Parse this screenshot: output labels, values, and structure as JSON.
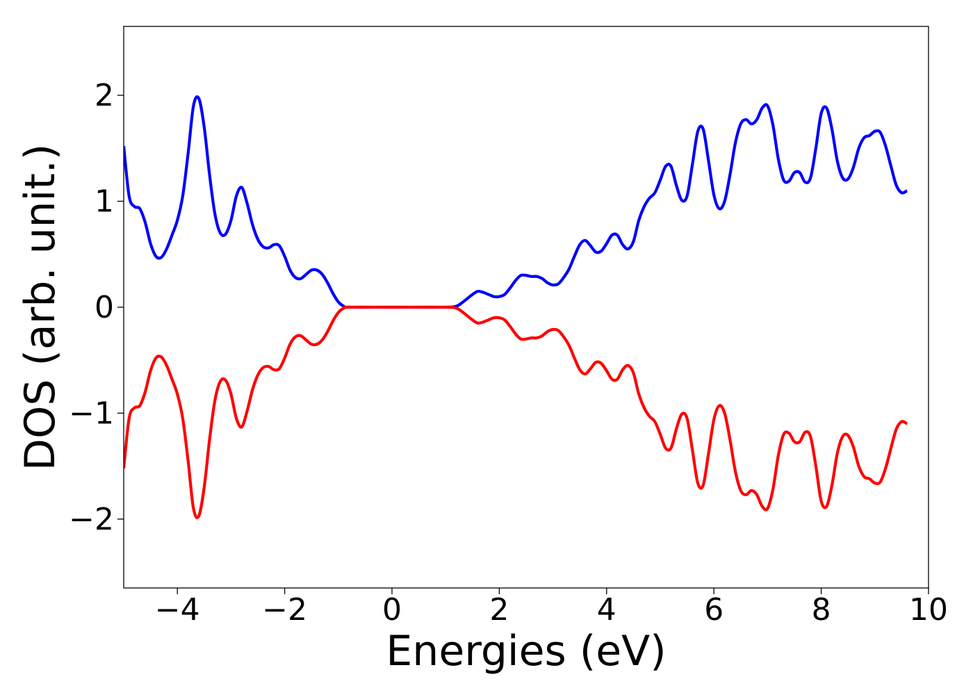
{
  "chart_data": {
    "type": "line",
    "title": "",
    "xlabel": "Energies (eV)",
    "ylabel": "DOS (arb. unit.)",
    "xlim": [
      -5,
      10
    ],
    "ylim": [
      -2.65,
      2.65
    ],
    "grid": false,
    "legend": "none",
    "x_ticks": [
      -4,
      -2,
      0,
      2,
      4,
      6,
      8,
      10
    ],
    "x_tick_labels": [
      "−4",
      "−2",
      "0",
      "2",
      "4",
      "6",
      "8",
      "10"
    ],
    "y_ticks": [
      -2,
      -1,
      0,
      1,
      2
    ],
    "y_tick_labels": [
      "−2",
      "−1",
      "0",
      "1",
      "2"
    ],
    "series": [
      {
        "color": "#0000ff",
        "points": [
          [
            -5.0,
            1.52
          ],
          [
            -4.9,
            1.05
          ],
          [
            -4.8,
            0.95
          ],
          [
            -4.7,
            0.93
          ],
          [
            -4.6,
            0.8
          ],
          [
            -4.5,
            0.6
          ],
          [
            -4.4,
            0.48
          ],
          [
            -4.3,
            0.47
          ],
          [
            -4.2,
            0.55
          ],
          [
            -4.1,
            0.68
          ],
          [
            -4.0,
            0.82
          ],
          [
            -3.9,
            1.05
          ],
          [
            -3.8,
            1.45
          ],
          [
            -3.7,
            1.9
          ],
          [
            -3.6,
            1.97
          ],
          [
            -3.5,
            1.7
          ],
          [
            -3.4,
            1.25
          ],
          [
            -3.3,
            0.88
          ],
          [
            -3.2,
            0.7
          ],
          [
            -3.1,
            0.69
          ],
          [
            -3.0,
            0.82
          ],
          [
            -2.9,
            1.05
          ],
          [
            -2.8,
            1.13
          ],
          [
            -2.7,
            0.98
          ],
          [
            -2.6,
            0.78
          ],
          [
            -2.5,
            0.64
          ],
          [
            -2.4,
            0.57
          ],
          [
            -2.3,
            0.56
          ],
          [
            -2.2,
            0.59
          ],
          [
            -2.1,
            0.58
          ],
          [
            -2.0,
            0.48
          ],
          [
            -1.9,
            0.35
          ],
          [
            -1.8,
            0.28
          ],
          [
            -1.7,
            0.27
          ],
          [
            -1.6,
            0.31
          ],
          [
            -1.5,
            0.35
          ],
          [
            -1.4,
            0.35
          ],
          [
            -1.3,
            0.31
          ],
          [
            -1.2,
            0.23
          ],
          [
            -1.1,
            0.13
          ],
          [
            -1.0,
            0.05
          ],
          [
            -0.9,
            0.01
          ],
          [
            -0.8,
            0.0
          ],
          [
            0.0,
            0.0
          ],
          [
            1.0,
            0.0
          ],
          [
            1.2,
            0.01
          ],
          [
            1.3,
            0.04
          ],
          [
            1.4,
            0.08
          ],
          [
            1.5,
            0.12
          ],
          [
            1.6,
            0.15
          ],
          [
            1.7,
            0.14
          ],
          [
            1.8,
            0.12
          ],
          [
            1.9,
            0.1
          ],
          [
            2.0,
            0.1
          ],
          [
            2.1,
            0.12
          ],
          [
            2.2,
            0.18
          ],
          [
            2.3,
            0.25
          ],
          [
            2.4,
            0.3
          ],
          [
            2.5,
            0.3
          ],
          [
            2.6,
            0.29
          ],
          [
            2.7,
            0.29
          ],
          [
            2.8,
            0.27
          ],
          [
            2.9,
            0.23
          ],
          [
            3.0,
            0.21
          ],
          [
            3.1,
            0.22
          ],
          [
            3.2,
            0.28
          ],
          [
            3.3,
            0.36
          ],
          [
            3.4,
            0.48
          ],
          [
            3.5,
            0.59
          ],
          [
            3.6,
            0.63
          ],
          [
            3.7,
            0.58
          ],
          [
            3.8,
            0.52
          ],
          [
            3.9,
            0.53
          ],
          [
            4.0,
            0.6
          ],
          [
            4.1,
            0.68
          ],
          [
            4.2,
            0.68
          ],
          [
            4.3,
            0.59
          ],
          [
            4.4,
            0.55
          ],
          [
            4.5,
            0.62
          ],
          [
            4.6,
            0.82
          ],
          [
            4.7,
            0.95
          ],
          [
            4.8,
            1.03
          ],
          [
            4.9,
            1.08
          ],
          [
            5.0,
            1.2
          ],
          [
            5.1,
            1.33
          ],
          [
            5.2,
            1.33
          ],
          [
            5.3,
            1.15
          ],
          [
            5.4,
            1.01
          ],
          [
            5.5,
            1.05
          ],
          [
            5.6,
            1.35
          ],
          [
            5.7,
            1.66
          ],
          [
            5.8,
            1.68
          ],
          [
            5.9,
            1.38
          ],
          [
            6.0,
            1.06
          ],
          [
            6.1,
            0.93
          ],
          [
            6.2,
            1.0
          ],
          [
            6.3,
            1.25
          ],
          [
            6.4,
            1.55
          ],
          [
            6.5,
            1.73
          ],
          [
            6.6,
            1.77
          ],
          [
            6.7,
            1.73
          ],
          [
            6.8,
            1.77
          ],
          [
            6.9,
            1.88
          ],
          [
            7.0,
            1.9
          ],
          [
            7.1,
            1.72
          ],
          [
            7.2,
            1.4
          ],
          [
            7.3,
            1.2
          ],
          [
            7.4,
            1.19
          ],
          [
            7.5,
            1.27
          ],
          [
            7.6,
            1.27
          ],
          [
            7.7,
            1.18
          ],
          [
            7.8,
            1.22
          ],
          [
            7.9,
            1.5
          ],
          [
            8.0,
            1.83
          ],
          [
            8.1,
            1.88
          ],
          [
            8.2,
            1.68
          ],
          [
            8.3,
            1.38
          ],
          [
            8.4,
            1.22
          ],
          [
            8.5,
            1.21
          ],
          [
            8.6,
            1.32
          ],
          [
            8.7,
            1.5
          ],
          [
            8.8,
            1.6
          ],
          [
            8.9,
            1.62
          ],
          [
            9.0,
            1.66
          ],
          [
            9.1,
            1.65
          ],
          [
            9.2,
            1.52
          ],
          [
            9.3,
            1.33
          ],
          [
            9.4,
            1.15
          ],
          [
            9.5,
            1.08
          ],
          [
            9.6,
            1.1
          ]
        ]
      },
      {
        "color": "#ff0000",
        "points": [
          [
            -5.0,
            -1.52
          ],
          [
            -4.9,
            -1.05
          ],
          [
            -4.8,
            -0.95
          ],
          [
            -4.7,
            -0.93
          ],
          [
            -4.6,
            -0.8
          ],
          [
            -4.5,
            -0.6
          ],
          [
            -4.4,
            -0.48
          ],
          [
            -4.3,
            -0.47
          ],
          [
            -4.2,
            -0.55
          ],
          [
            -4.1,
            -0.68
          ],
          [
            -4.0,
            -0.82
          ],
          [
            -3.9,
            -1.05
          ],
          [
            -3.8,
            -1.45
          ],
          [
            -3.7,
            -1.9
          ],
          [
            -3.6,
            -1.97
          ],
          [
            -3.5,
            -1.7
          ],
          [
            -3.4,
            -1.25
          ],
          [
            -3.3,
            -0.88
          ],
          [
            -3.2,
            -0.7
          ],
          [
            -3.1,
            -0.69
          ],
          [
            -3.0,
            -0.82
          ],
          [
            -2.9,
            -1.05
          ],
          [
            -2.8,
            -1.13
          ],
          [
            -2.7,
            -0.98
          ],
          [
            -2.6,
            -0.78
          ],
          [
            -2.5,
            -0.64
          ],
          [
            -2.4,
            -0.57
          ],
          [
            -2.3,
            -0.56
          ],
          [
            -2.2,
            -0.59
          ],
          [
            -2.1,
            -0.58
          ],
          [
            -2.0,
            -0.48
          ],
          [
            -1.9,
            -0.35
          ],
          [
            -1.8,
            -0.28
          ],
          [
            -1.7,
            -0.27
          ],
          [
            -1.6,
            -0.31
          ],
          [
            -1.5,
            -0.35
          ],
          [
            -1.4,
            -0.35
          ],
          [
            -1.3,
            -0.31
          ],
          [
            -1.2,
            -0.23
          ],
          [
            -1.1,
            -0.13
          ],
          [
            -1.0,
            -0.05
          ],
          [
            -0.9,
            -0.01
          ],
          [
            -0.8,
            0.0
          ],
          [
            0.0,
            0.0
          ],
          [
            1.0,
            0.0
          ],
          [
            1.2,
            -0.01
          ],
          [
            1.3,
            -0.04
          ],
          [
            1.4,
            -0.08
          ],
          [
            1.5,
            -0.12
          ],
          [
            1.6,
            -0.15
          ],
          [
            1.7,
            -0.14
          ],
          [
            1.8,
            -0.12
          ],
          [
            1.9,
            -0.1
          ],
          [
            2.0,
            -0.1
          ],
          [
            2.1,
            -0.12
          ],
          [
            2.2,
            -0.18
          ],
          [
            2.3,
            -0.25
          ],
          [
            2.4,
            -0.3
          ],
          [
            2.5,
            -0.3
          ],
          [
            2.6,
            -0.29
          ],
          [
            2.7,
            -0.29
          ],
          [
            2.8,
            -0.27
          ],
          [
            2.9,
            -0.23
          ],
          [
            3.0,
            -0.21
          ],
          [
            3.1,
            -0.22
          ],
          [
            3.2,
            -0.28
          ],
          [
            3.3,
            -0.36
          ],
          [
            3.4,
            -0.48
          ],
          [
            3.5,
            -0.59
          ],
          [
            3.6,
            -0.63
          ],
          [
            3.7,
            -0.58
          ],
          [
            3.8,
            -0.52
          ],
          [
            3.9,
            -0.53
          ],
          [
            4.0,
            -0.6
          ],
          [
            4.1,
            -0.68
          ],
          [
            4.2,
            -0.68
          ],
          [
            4.3,
            -0.59
          ],
          [
            4.4,
            -0.55
          ],
          [
            4.5,
            -0.62
          ],
          [
            4.6,
            -0.82
          ],
          [
            4.7,
            -0.95
          ],
          [
            4.8,
            -1.03
          ],
          [
            4.9,
            -1.08
          ],
          [
            5.0,
            -1.2
          ],
          [
            5.1,
            -1.33
          ],
          [
            5.2,
            -1.33
          ],
          [
            5.3,
            -1.15
          ],
          [
            5.4,
            -1.01
          ],
          [
            5.5,
            -1.05
          ],
          [
            5.6,
            -1.35
          ],
          [
            5.7,
            -1.66
          ],
          [
            5.8,
            -1.68
          ],
          [
            5.9,
            -1.38
          ],
          [
            6.0,
            -1.06
          ],
          [
            6.1,
            -0.93
          ],
          [
            6.2,
            -1.0
          ],
          [
            6.3,
            -1.25
          ],
          [
            6.4,
            -1.55
          ],
          [
            6.5,
            -1.73
          ],
          [
            6.6,
            -1.77
          ],
          [
            6.7,
            -1.73
          ],
          [
            6.8,
            -1.77
          ],
          [
            6.9,
            -1.88
          ],
          [
            7.0,
            -1.9
          ],
          [
            7.1,
            -1.72
          ],
          [
            7.2,
            -1.4
          ],
          [
            7.3,
            -1.2
          ],
          [
            7.4,
            -1.19
          ],
          [
            7.5,
            -1.27
          ],
          [
            7.6,
            -1.27
          ],
          [
            7.7,
            -1.18
          ],
          [
            7.8,
            -1.22
          ],
          [
            7.9,
            -1.5
          ],
          [
            8.0,
            -1.83
          ],
          [
            8.1,
            -1.88
          ],
          [
            8.2,
            -1.68
          ],
          [
            8.3,
            -1.38
          ],
          [
            8.4,
            -1.22
          ],
          [
            8.5,
            -1.21
          ],
          [
            8.6,
            -1.32
          ],
          [
            8.7,
            -1.5
          ],
          [
            8.8,
            -1.6
          ],
          [
            8.9,
            -1.62
          ],
          [
            9.0,
            -1.66
          ],
          [
            9.1,
            -1.65
          ],
          [
            9.2,
            -1.52
          ],
          [
            9.3,
            -1.33
          ],
          [
            9.4,
            -1.15
          ],
          [
            9.5,
            -1.08
          ],
          [
            9.6,
            -1.1
          ]
        ]
      }
    ]
  }
}
